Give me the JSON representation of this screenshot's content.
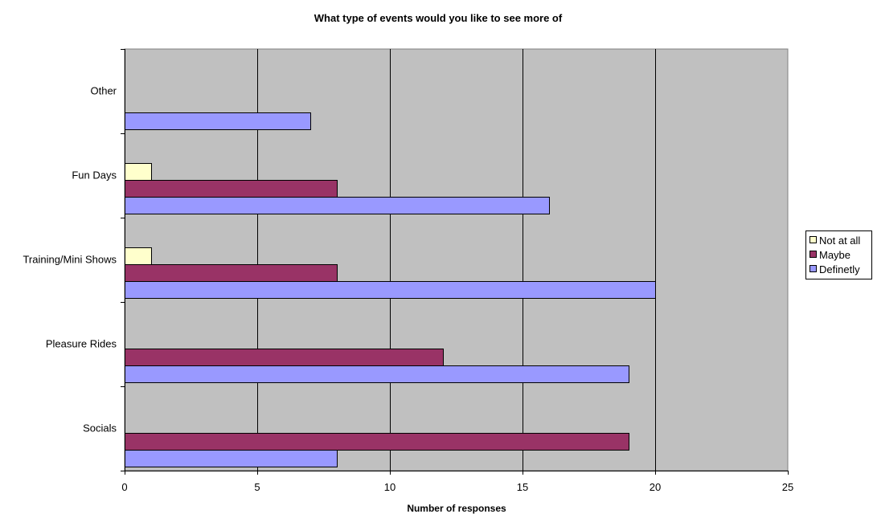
{
  "chart_data": {
    "type": "bar",
    "orientation": "horizontal",
    "title": "What type of events would you like to see more of",
    "xlabel": "Number of responses",
    "ylabel": "",
    "xlim": [
      0,
      25
    ],
    "x_ticks": [
      "0",
      "5",
      "10",
      "15",
      "20",
      "25"
    ],
    "categories": [
      "Socials",
      "Pleasure Rides",
      "Training/Mini Shows",
      "Fun Days",
      "Other"
    ],
    "series": [
      {
        "name": "Not at all",
        "color": "#ffffcc",
        "values": [
          0,
          0,
          1,
          1,
          0
        ]
      },
      {
        "name": "Maybe",
        "color": "#993366",
        "values": [
          19,
          12,
          8,
          8,
          0
        ]
      },
      {
        "name": "Definetly",
        "color": "#9999ff",
        "values": [
          8,
          19,
          20,
          16,
          7
        ]
      }
    ],
    "grid": "vertical major gridlines",
    "plot_background": "#c0c0c0",
    "legend_position": "right"
  }
}
